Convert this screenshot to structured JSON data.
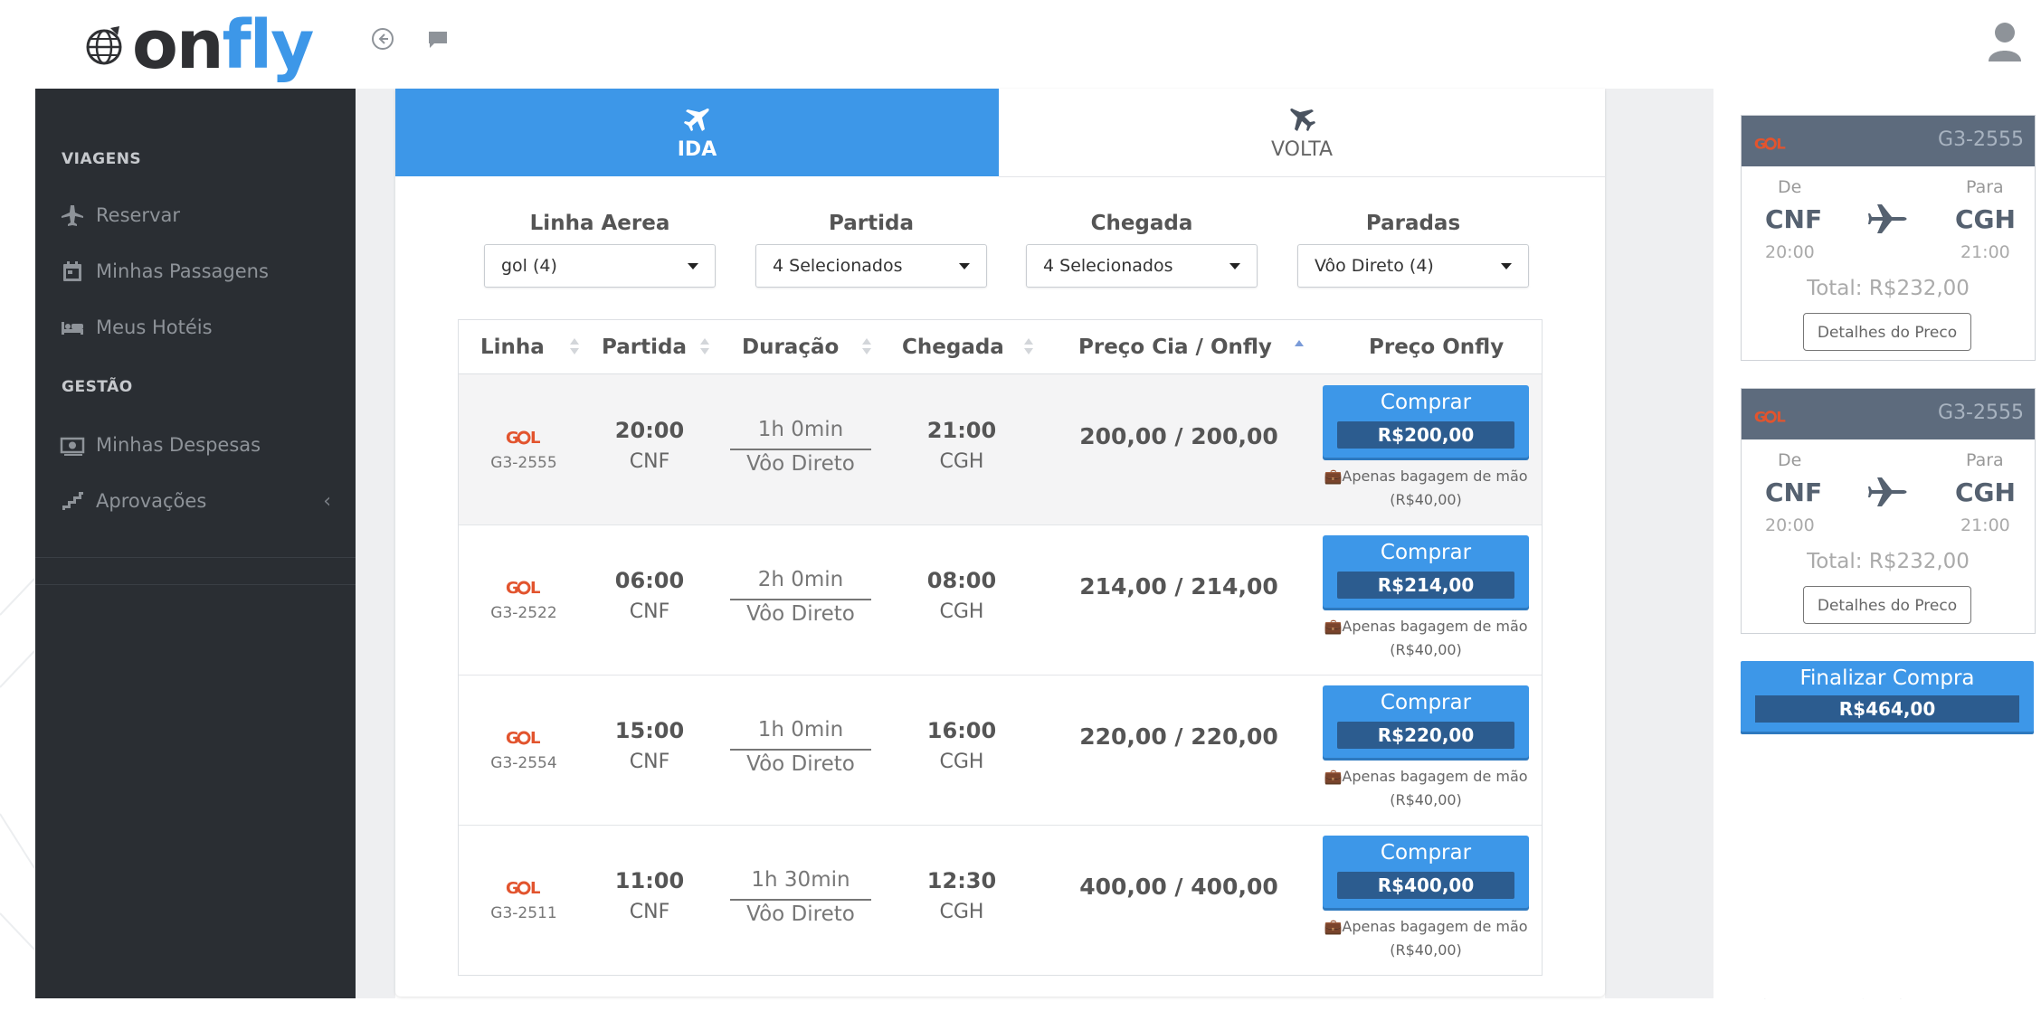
{
  "brand": {
    "logo_on": "on",
    "logo_fly": "fly",
    "accent": "#3d97e8"
  },
  "header": {
    "back_icon": "circle-arrow-left-icon",
    "chat_icon": "chat-icon",
    "avatar_icon": "user-avatar-icon"
  },
  "sidebar": {
    "section_viagens": "VIAGENS",
    "section_gestao": "GESTÃO",
    "items": [
      {
        "label": "Reservar",
        "icon": "plane-icon"
      },
      {
        "label": "Minhas Passagens",
        "icon": "calendar-icon"
      },
      {
        "label": "Meus Hotéis",
        "icon": "bed-icon"
      },
      {
        "label": "Minhas Despesas",
        "icon": "money-icon"
      },
      {
        "label": "Aprovações",
        "icon": "stairs-icon",
        "chevron": "‹"
      }
    ]
  },
  "tabs": [
    {
      "label": "IDA",
      "icon": "plane-departure-icon",
      "active": true
    },
    {
      "label": "VOLTA",
      "icon": "plane-return-icon",
      "active": false
    }
  ],
  "filters": [
    {
      "title": "Linha Aerea",
      "value": "gol (4)"
    },
    {
      "title": "Partida",
      "value": "4 Selecionados"
    },
    {
      "title": "Chegada",
      "value": "4 Selecionados"
    },
    {
      "title": "Paradas",
      "value": "Vôo Direto (4)"
    }
  ],
  "table": {
    "headers": [
      "Linha",
      "Partida",
      "Duração",
      "Chegada",
      "Preço Cia / Onfly",
      "Preço Onfly"
    ],
    "rows": [
      {
        "airline": "GOL",
        "flight": "G3-2555",
        "dep_time": "20:00",
        "dep_city": "CNF",
        "duration": "1h 0min",
        "stops": "Vôo Direto",
        "arr_time": "21:00",
        "arr_city": "CGH",
        "price": "200,00 / 200,00",
        "buy_label": "Comprar",
        "buy_price": "R$200,00",
        "bag_line1": "Apenas bagagem de mão",
        "bag_line2": "(R$40,00)"
      },
      {
        "airline": "GOL",
        "flight": "G3-2522",
        "dep_time": "06:00",
        "dep_city": "CNF",
        "duration": "2h 0min",
        "stops": "Vôo Direto",
        "arr_time": "08:00",
        "arr_city": "CGH",
        "price": "214,00 / 214,00",
        "buy_label": "Comprar",
        "buy_price": "R$214,00",
        "bag_line1": "Apenas bagagem de mão",
        "bag_line2": "(R$40,00)"
      },
      {
        "airline": "GOL",
        "flight": "G3-2554",
        "dep_time": "15:00",
        "dep_city": "CNF",
        "duration": "1h 0min",
        "stops": "Vôo Direto",
        "arr_time": "16:00",
        "arr_city": "CGH",
        "price": "220,00 / 220,00",
        "buy_label": "Comprar",
        "buy_price": "R$220,00",
        "bag_line1": "Apenas bagagem de mão",
        "bag_line2": "(R$40,00)"
      },
      {
        "airline": "GOL",
        "flight": "G3-2511",
        "dep_time": "11:00",
        "dep_city": "CNF",
        "duration": "1h 30min",
        "stops": "Vôo Direto",
        "arr_time": "12:30",
        "arr_city": "CGH",
        "price": "400,00 / 400,00",
        "buy_label": "Comprar",
        "buy_price": "R$400,00",
        "bag_line1": "Apenas bagagem de mão",
        "bag_line2": "(R$40,00)"
      }
    ]
  },
  "summary": [
    {
      "airline": "GOL",
      "flight": "G3-2555",
      "from_label": "De",
      "to_label": "Para",
      "from": "CNF",
      "to": "CGH",
      "dep_time": "20:00",
      "arr_time": "21:00",
      "total": "Total: R$232,00",
      "details": "Detalhes do Preco"
    },
    {
      "airline": "GOL",
      "flight": "G3-2555",
      "from_label": "De",
      "to_label": "Para",
      "from": "CNF",
      "to": "CGH",
      "dep_time": "20:00",
      "arr_time": "21:00",
      "total": "Total: R$232,00",
      "details": "Detalhes do Preco"
    }
  ],
  "finalize": {
    "label": "Finalizar Compra",
    "price": "R$464,00"
  }
}
